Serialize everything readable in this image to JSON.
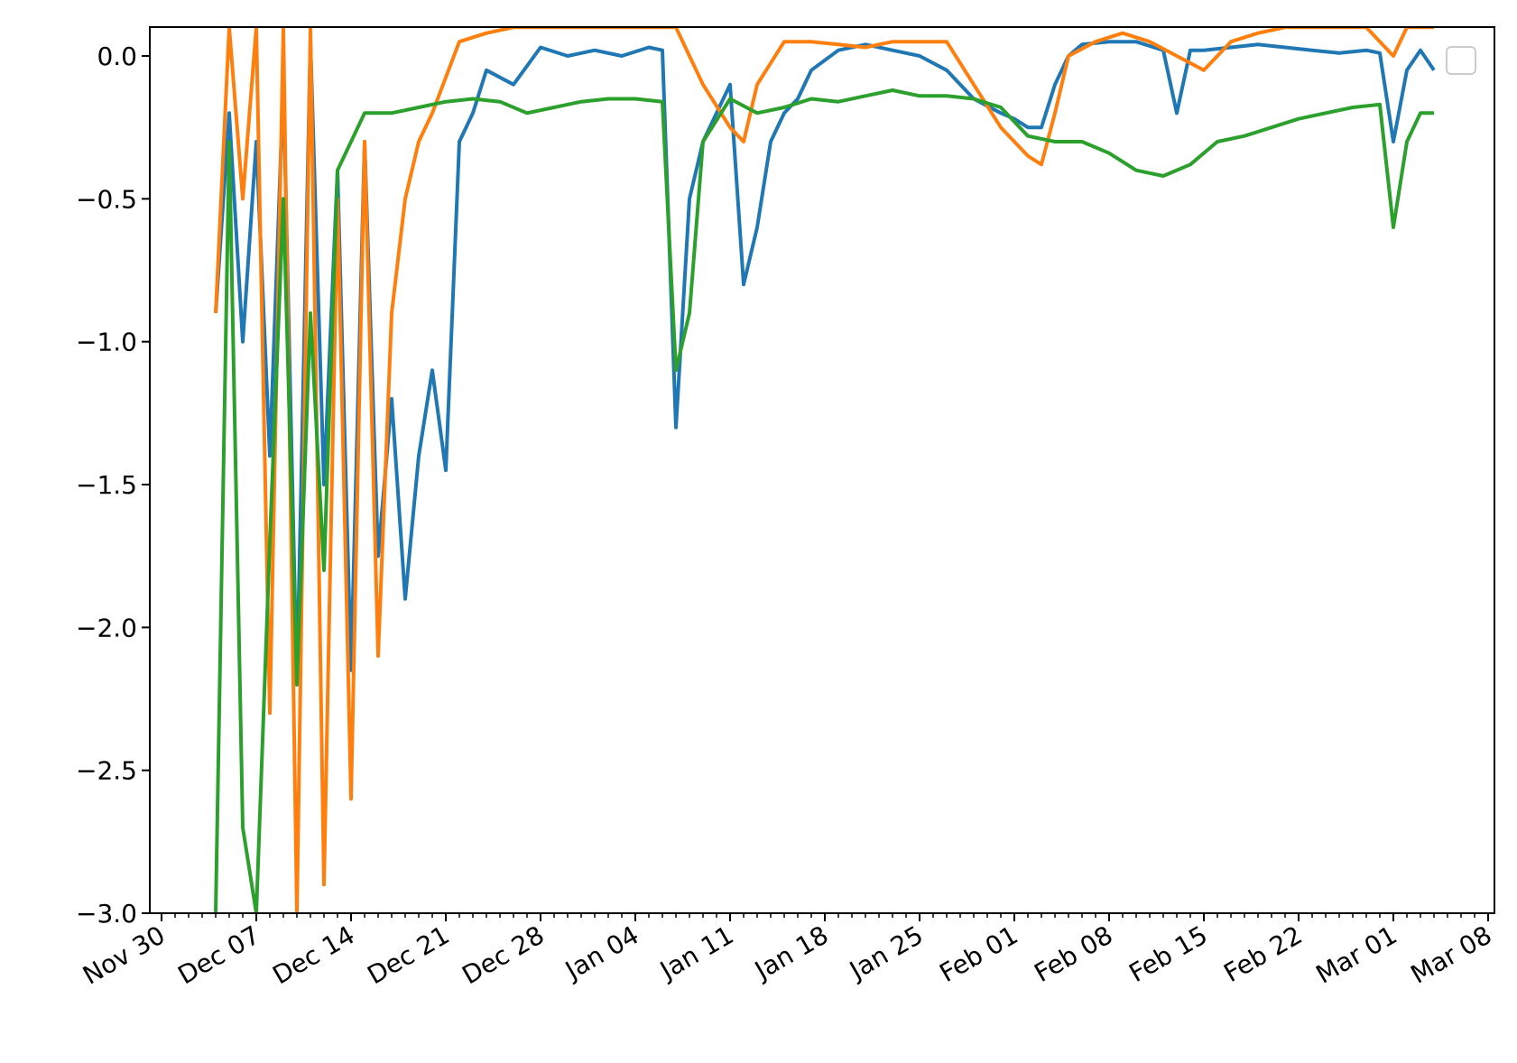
{
  "chart_data": {
    "type": "line",
    "title": "",
    "xlabel": "",
    "ylabel": "",
    "x_range": [
      "2020-11-30",
      "2021-03-08"
    ],
    "ylim": [
      -3.0,
      0.1
    ],
    "grid": false,
    "legend": "top-right",
    "x_tick_labels": [
      "Nov 30",
      "Dec 07",
      "Dec 14",
      "Dec 21",
      "Dec 28",
      "Jan 04",
      "Jan 11",
      "Jan 18",
      "Jan 25",
      "Feb 01",
      "Feb 08",
      "Feb 15",
      "Feb 22",
      "Mar 01",
      "Mar 08"
    ],
    "y_tick_labels": [
      "0.0",
      "−0.5",
      "−1.0",
      "−1.5",
      "−2.0",
      "−2.5",
      "−3.0"
    ],
    "y_tick_values": [
      0.0,
      -0.5,
      -1.0,
      -1.5,
      -2.0,
      -2.5,
      -3.0
    ],
    "series": [
      {
        "color": "#1f77b4",
        "x": [
          "2020-12-04",
          "2020-12-05",
          "2020-12-06",
          "2020-12-07",
          "2020-12-08",
          "2020-12-09",
          "2020-12-10",
          "2020-12-11",
          "2020-12-12",
          "2020-12-13",
          "2020-12-14",
          "2020-12-15",
          "2020-12-16",
          "2020-12-17",
          "2020-12-18",
          "2020-12-19",
          "2020-12-20",
          "2020-12-21",
          "2020-12-22",
          "2020-12-23",
          "2020-12-24",
          "2020-12-26",
          "2020-12-28",
          "2020-12-30",
          "2021-01-01",
          "2021-01-03",
          "2021-01-05",
          "2021-01-06",
          "2021-01-07",
          "2021-01-08",
          "2021-01-09",
          "2021-01-10",
          "2021-01-11",
          "2021-01-12",
          "2021-01-13",
          "2021-01-14",
          "2021-01-15",
          "2021-01-16",
          "2021-01-17",
          "2021-01-19",
          "2021-01-21",
          "2021-01-23",
          "2021-01-25",
          "2021-01-27",
          "2021-01-29",
          "2021-01-31",
          "2021-02-01",
          "2021-02-02",
          "2021-02-03",
          "2021-02-04",
          "2021-02-05",
          "2021-02-06",
          "2021-02-08",
          "2021-02-10",
          "2021-02-12",
          "2021-02-13",
          "2021-02-14",
          "2021-02-15",
          "2021-02-17",
          "2021-02-19",
          "2021-02-21",
          "2021-02-23",
          "2021-02-25",
          "2021-02-27",
          "2021-02-28",
          "2021-03-01",
          "2021-03-02",
          "2021-03-03",
          "2021-03-04"
        ],
        "y": [
          -0.9,
          -0.2,
          -1.0,
          -0.3,
          -1.4,
          -0.1,
          -2.2,
          0.05,
          -1.5,
          -0.4,
          -2.15,
          -0.3,
          -1.75,
          -1.2,
          -1.9,
          -1.4,
          -1.1,
          -1.45,
          -0.3,
          -0.2,
          -0.05,
          -0.1,
          0.03,
          0.0,
          0.02,
          0.0,
          0.03,
          0.02,
          -1.3,
          -0.5,
          -0.3,
          -0.2,
          -0.1,
          -0.8,
          -0.6,
          -0.3,
          -0.2,
          -0.15,
          -0.05,
          0.02,
          0.04,
          0.02,
          0.0,
          -0.05,
          -0.15,
          -0.2,
          -0.22,
          -0.25,
          -0.25,
          -0.1,
          0.0,
          0.04,
          0.05,
          0.05,
          0.02,
          -0.2,
          0.02,
          0.02,
          0.03,
          0.04,
          0.03,
          0.02,
          0.01,
          0.02,
          0.01,
          -0.3,
          -0.05,
          0.02,
          -0.05
        ]
      },
      {
        "color": "#ff7f0e",
        "x": [
          "2020-12-04",
          "2020-12-05",
          "2020-12-06",
          "2020-12-07",
          "2020-12-08",
          "2020-12-09",
          "2020-12-10",
          "2020-12-11",
          "2020-12-12",
          "2020-12-13",
          "2020-12-14",
          "2020-12-15",
          "2020-12-16",
          "2020-12-17",
          "2020-12-18",
          "2020-12-19",
          "2020-12-20",
          "2020-12-22",
          "2020-12-24",
          "2020-12-26",
          "2020-12-28",
          "2020-12-30",
          "2021-01-01",
          "2021-01-03",
          "2021-01-05",
          "2021-01-07",
          "2021-01-09",
          "2021-01-11",
          "2021-01-12",
          "2021-01-13",
          "2021-01-15",
          "2021-01-17",
          "2021-01-19",
          "2021-01-21",
          "2021-01-23",
          "2021-01-25",
          "2021-01-27",
          "2021-01-29",
          "2021-01-31",
          "2021-02-01",
          "2021-02-02",
          "2021-02-03",
          "2021-02-04",
          "2021-02-05",
          "2021-02-07",
          "2021-02-09",
          "2021-02-11",
          "2021-02-13",
          "2021-02-15",
          "2021-02-17",
          "2021-02-19",
          "2021-02-21",
          "2021-02-23",
          "2021-02-25",
          "2021-02-27",
          "2021-03-01",
          "2021-03-02",
          "2021-03-03",
          "2021-03-04"
        ],
        "y": [
          -0.9,
          0.1,
          -0.5,
          0.1,
          -2.3,
          0.1,
          -3.0,
          0.1,
          -2.9,
          -0.5,
          -2.6,
          -0.3,
          -2.1,
          -0.9,
          -0.5,
          -0.3,
          -0.2,
          0.05,
          0.08,
          0.1,
          0.1,
          0.1,
          0.1,
          0.1,
          0.1,
          0.1,
          -0.1,
          -0.25,
          -0.3,
          -0.1,
          0.05,
          0.05,
          0.04,
          0.03,
          0.05,
          0.05,
          0.05,
          -0.1,
          -0.25,
          -0.3,
          -0.35,
          -0.38,
          -0.2,
          0.0,
          0.05,
          0.08,
          0.05,
          0.0,
          -0.05,
          0.05,
          0.08,
          0.1,
          0.1,
          0.1,
          0.1,
          0.0,
          0.1,
          0.1,
          0.1
        ]
      },
      {
        "color": "#2ca02c",
        "x": [
          "2020-12-04",
          "2020-12-05",
          "2020-12-06",
          "2020-12-07",
          "2020-12-08",
          "2020-12-09",
          "2020-12-10",
          "2020-12-11",
          "2020-12-12",
          "2020-12-13",
          "2020-12-14",
          "2020-12-15",
          "2020-12-17",
          "2020-12-19",
          "2020-12-21",
          "2020-12-23",
          "2020-12-25",
          "2020-12-27",
          "2020-12-29",
          "2020-12-31",
          "2021-01-02",
          "2021-01-04",
          "2021-01-06",
          "2021-01-07",
          "2021-01-08",
          "2021-01-09",
          "2021-01-11",
          "2021-01-13",
          "2021-01-15",
          "2021-01-17",
          "2021-01-19",
          "2021-01-21",
          "2021-01-23",
          "2021-01-25",
          "2021-01-27",
          "2021-01-29",
          "2021-01-31",
          "2021-02-02",
          "2021-02-04",
          "2021-02-06",
          "2021-02-08",
          "2021-02-10",
          "2021-02-12",
          "2021-02-14",
          "2021-02-16",
          "2021-02-18",
          "2021-02-20",
          "2021-02-22",
          "2021-02-24",
          "2021-02-26",
          "2021-02-28",
          "2021-03-01",
          "2021-03-02",
          "2021-03-03",
          "2021-03-04"
        ],
        "y": [
          -3.0,
          -0.3,
          -2.7,
          -3.0,
          -1.7,
          -0.5,
          -2.2,
          -0.9,
          -1.8,
          -0.4,
          -0.3,
          -0.2,
          -0.2,
          -0.18,
          -0.16,
          -0.15,
          -0.16,
          -0.2,
          -0.18,
          -0.16,
          -0.15,
          -0.15,
          -0.16,
          -1.1,
          -0.9,
          -0.3,
          -0.15,
          -0.2,
          -0.18,
          -0.15,
          -0.16,
          -0.14,
          -0.12,
          -0.14,
          -0.14,
          -0.15,
          -0.18,
          -0.28,
          -0.3,
          -0.3,
          -0.34,
          -0.4,
          -0.42,
          -0.38,
          -0.3,
          -0.28,
          -0.25,
          -0.22,
          -0.2,
          -0.18,
          -0.17,
          -0.6,
          -0.3,
          -0.2,
          -0.2
        ]
      }
    ]
  }
}
